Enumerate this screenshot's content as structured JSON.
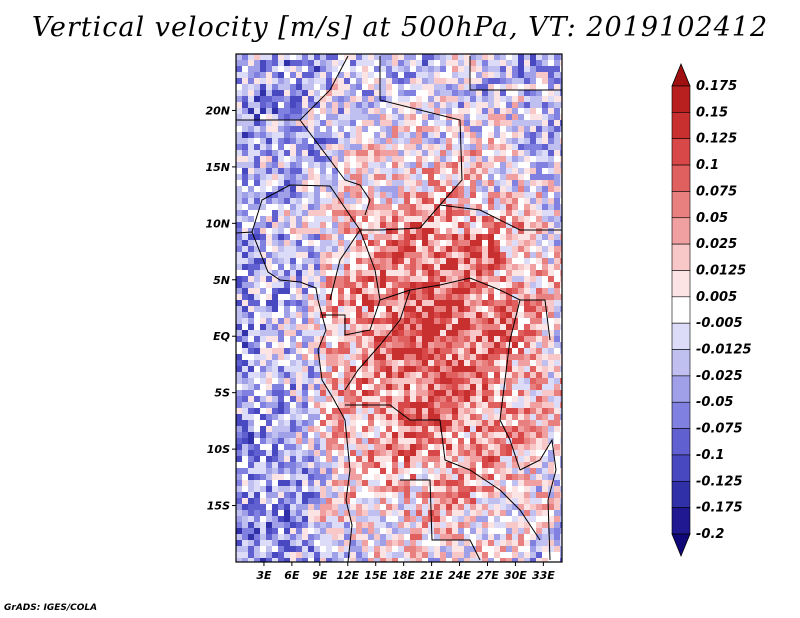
{
  "title": "Vertical velocity [m/s] at 500hPa, VT: 2019102412",
  "credit": "GrADS: IGES/COLA",
  "map": {
    "lon_range": [
      0,
      35
    ],
    "lat_range": [
      -20,
      25
    ],
    "lat_ticks": [
      "20N",
      "15N",
      "10N",
      "5N",
      "EQ",
      "5S",
      "10S",
      "15S"
    ],
    "lat_values": [
      20,
      15,
      10,
      5,
      0,
      -5,
      -10,
      -15
    ],
    "lon_ticks": [
      "3E",
      "6E",
      "9E",
      "12E",
      "15E",
      "18E",
      "21E",
      "24E",
      "27E",
      "30E",
      "33E"
    ],
    "lon_values": [
      3,
      6,
      9,
      12,
      15,
      18,
      21,
      24,
      27,
      30,
      33
    ]
  },
  "colorbar": {
    "levels": [
      "0.175",
      "0.15",
      "0.125",
      "0.1",
      "0.075",
      "0.05",
      "0.025",
      "0.0125",
      "0.005",
      "-0.005",
      "-0.0125",
      "-0.025",
      "-0.05",
      "-0.075",
      "-0.1",
      "-0.125",
      "-0.175",
      "-0.2"
    ],
    "colors": [
      "#a01010",
      "#b82020",
      "#c83030",
      "#d84848",
      "#e06060",
      "#e88080",
      "#f0a0a0",
      "#f8c8c8",
      "#fce4e4",
      "#ffffff",
      "#dcdcf8",
      "#c0c0f0",
      "#a0a0e8",
      "#8080e0",
      "#6060d0",
      "#4848c0",
      "#3030a8",
      "#201890",
      "#100878"
    ]
  },
  "colors": {
    "positive": "#d03030",
    "negative": "#5050d8",
    "border": "#000000"
  }
}
